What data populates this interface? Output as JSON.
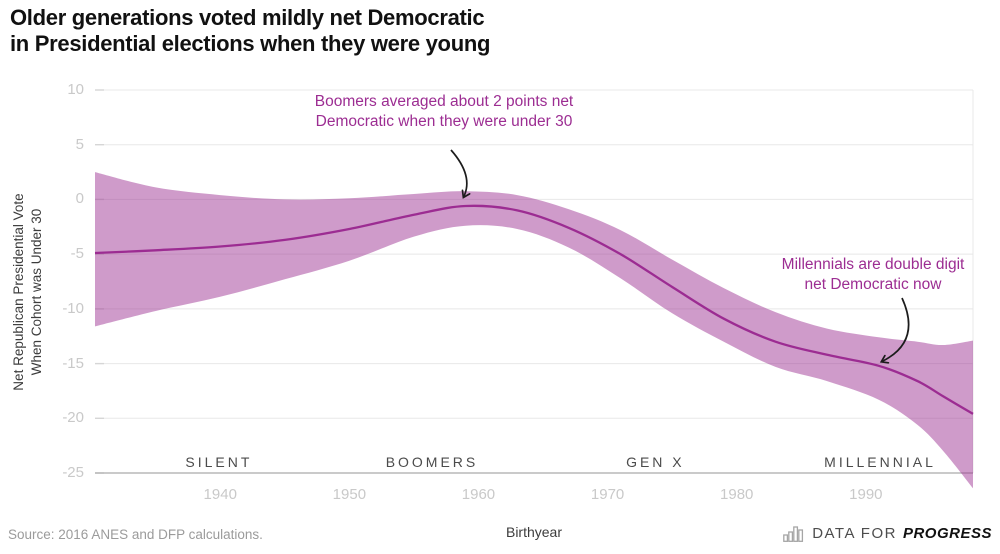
{
  "title": "Older generations voted mildly net Democratic\nin Presidential elections when they were young",
  "source": "Source: 2016 ANES and DFP calculations.",
  "logo": {
    "prefix": "DATA FOR",
    "name": "PROGRESS",
    "icon": "bar-chart-icon"
  },
  "colors": {
    "line": "#9c2c92",
    "band_fill": "#9a2e91",
    "band_opacity": 0.48,
    "annotation_text": "#9c2d92",
    "grid": "#e8e8e8",
    "tick_dash": "#d6d6d6",
    "axis_line": "#ababab",
    "tick_label": "#c9c9c9",
    "generation_label": "#4b4b4b",
    "arrow": "#1c1c1c"
  },
  "chart_data": {
    "type": "line",
    "title": "Older generations voted mildly net Democratic in Presidential elections when they were young",
    "xlabel": "Birthyear",
    "ylabel": "Net Republican Presidential Vote\nWhen Cohort was Under 30",
    "xlim": [
      1930.3,
      1998.3
    ],
    "ylim": [
      -26.5,
      10
    ],
    "x_ticks": [
      1940,
      1950,
      1960,
      1970,
      1980,
      1990
    ],
    "y_ticks": [
      10,
      5,
      0,
      -5,
      -10,
      -15,
      -20,
      -25
    ],
    "grid": true,
    "legend": false,
    "generation_labels": [
      {
        "label": "SILENT",
        "x": 1939.9
      },
      {
        "label": "BOOMERS",
        "x": 1956.4
      },
      {
        "label": "GEN X",
        "x": 1973.7
      },
      {
        "label": "MILLENNIAL",
        "x": 1991.1
      }
    ],
    "series": {
      "x": [
        1930.3,
        1935,
        1940,
        1945,
        1950,
        1955,
        1959,
        1963,
        1967,
        1971,
        1975,
        1979,
        1983,
        1987,
        1991,
        1994,
        1996,
        1998.3
      ],
      "mid": [
        -4.9,
        -4.65,
        -4.3,
        -3.7,
        -2.7,
        -1.4,
        -0.6,
        -1.0,
        -2.6,
        -5.0,
        -8.0,
        -10.9,
        -13.0,
        -14.2,
        -15.2,
        -16.6,
        -18.0,
        -19.6
      ],
      "upper_ci": [
        2.5,
        1.1,
        0.4,
        0.0,
        0.1,
        0.5,
        0.75,
        0.4,
        -0.9,
        -2.8,
        -5.5,
        -8.1,
        -10.3,
        -11.8,
        -12.6,
        -13.0,
        -13.3,
        -12.9
      ],
      "lower_ci": [
        -11.6,
        -10.2,
        -8.9,
        -7.3,
        -5.6,
        -3.4,
        -2.4,
        -2.7,
        -4.4,
        -7.2,
        -10.4,
        -13.0,
        -15.3,
        -16.6,
        -18.3,
        -20.6,
        -23.0,
        -26.4
      ]
    },
    "annotations": [
      {
        "text": "Boomers averaged about 2 points net\nDemocratic when they were under 30",
        "target_year": 1959,
        "target_value": -0.6
      },
      {
        "text": "Millennials are double digit\nnet Democratic now",
        "target_year": 1991,
        "target_value": -15
      }
    ]
  }
}
